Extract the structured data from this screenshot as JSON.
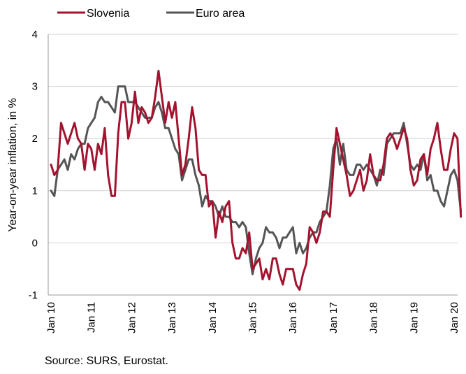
{
  "chart_data": {
    "type": "line",
    "title": "",
    "ylabel": "Year-on-year inflation, in %",
    "xlabel": "",
    "ylim": [
      -1,
      4
    ],
    "yticks": [
      -1,
      0,
      1,
      2,
      3,
      4
    ],
    "xticks": [
      "Jan 10",
      "Jan 11",
      "Jan 12",
      "Jan 13",
      "Jan 14",
      "Jan 15",
      "Jan 16",
      "Jan 17",
      "Jan 18",
      "Jan 19",
      "Jan 20"
    ],
    "x_start": "Jan 10",
    "grid": "horizontal",
    "legend": "top-left",
    "series": [
      {
        "name": "Slovenia",
        "color": "#a3132f",
        "values": [
          1.5,
          1.3,
          1.4,
          2.3,
          2.1,
          1.9,
          2.1,
          2.3,
          2.0,
          1.9,
          1.4,
          1.9,
          1.8,
          1.4,
          1.9,
          1.7,
          2.2,
          1.3,
          0.9,
          0.9,
          2.1,
          2.7,
          2.7,
          2.0,
          2.3,
          2.9,
          2.3,
          2.6,
          2.5,
          2.3,
          2.4,
          2.8,
          3.3,
          2.8,
          2.3,
          2.7,
          2.4,
          2.7,
          2.0,
          1.3,
          1.5,
          2.0,
          2.6,
          2.2,
          1.4,
          1.3,
          1.3,
          0.7,
          0.8,
          0.1,
          0.6,
          0.4,
          0.7,
          0.8,
          0.0,
          -0.3,
          -0.3,
          -0.1,
          -0.2,
          0.2,
          -0.5,
          -0.4,
          -0.3,
          -0.7,
          -0.5,
          -0.7,
          -0.3,
          -0.3,
          -0.6,
          -0.8,
          -0.5,
          -0.5,
          -0.5,
          -0.8,
          -0.9,
          -0.6,
          -0.4,
          0.3,
          0.2,
          0.0,
          0.2,
          0.6,
          0.6,
          0.5,
          1.4,
          2.2,
          1.9,
          1.6,
          1.3,
          0.9,
          1.0,
          1.2,
          1.4,
          1.0,
          1.2,
          1.7,
          1.3,
          1.2,
          1.2,
          1.5,
          2.0,
          2.1,
          2.0,
          1.8,
          2.0,
          2.2,
          2.0,
          1.4,
          1.1,
          1.2,
          1.6,
          1.7,
          1.3,
          1.8,
          2.0,
          2.3,
          1.8,
          1.4,
          1.4,
          1.8,
          2.1,
          2.0,
          0.5
        ]
      },
      {
        "name": "Euro area",
        "color": "#555555",
        "values": [
          1.0,
          0.9,
          1.4,
          1.5,
          1.6,
          1.4,
          1.7,
          1.6,
          1.8,
          1.9,
          1.9,
          2.2,
          2.3,
          2.4,
          2.7,
          2.8,
          2.7,
          2.7,
          2.6,
          2.5,
          3.0,
          3.0,
          3.0,
          2.7,
          2.7,
          2.7,
          2.6,
          2.5,
          2.4,
          2.4,
          2.4,
          2.6,
          2.7,
          2.5,
          2.2,
          2.2,
          2.0,
          1.8,
          1.7,
          1.2,
          1.4,
          1.6,
          1.6,
          1.3,
          1.1,
          0.7,
          0.9,
          0.8,
          0.8,
          0.7,
          0.5,
          0.7,
          0.5,
          0.5,
          0.4,
          0.4,
          0.3,
          0.4,
          0.3,
          -0.2,
          -0.6,
          -0.3,
          -0.1,
          0.0,
          0.3,
          0.2,
          0.2,
          0.1,
          -0.1,
          0.1,
          0.1,
          0.2,
          0.3,
          -0.2,
          0.0,
          -0.2,
          -0.1,
          0.1,
          0.2,
          0.2,
          0.4,
          0.5,
          0.6,
          1.1,
          1.8,
          2.0,
          1.5,
          1.9,
          1.4,
          1.3,
          1.3,
          1.5,
          1.5,
          1.4,
          1.5,
          1.4,
          1.3,
          1.1,
          1.4,
          1.3,
          1.9,
          2.0,
          2.1,
          2.1,
          2.1,
          2.3,
          1.9,
          1.5,
          1.4,
          1.5,
          1.4,
          1.7,
          1.2,
          1.3,
          1.0,
          1.0,
          0.8,
          0.7,
          1.0,
          1.3,
          1.4,
          1.2,
          0.6
        ]
      }
    ]
  },
  "source_note": "Source: SURS, Eurostat."
}
